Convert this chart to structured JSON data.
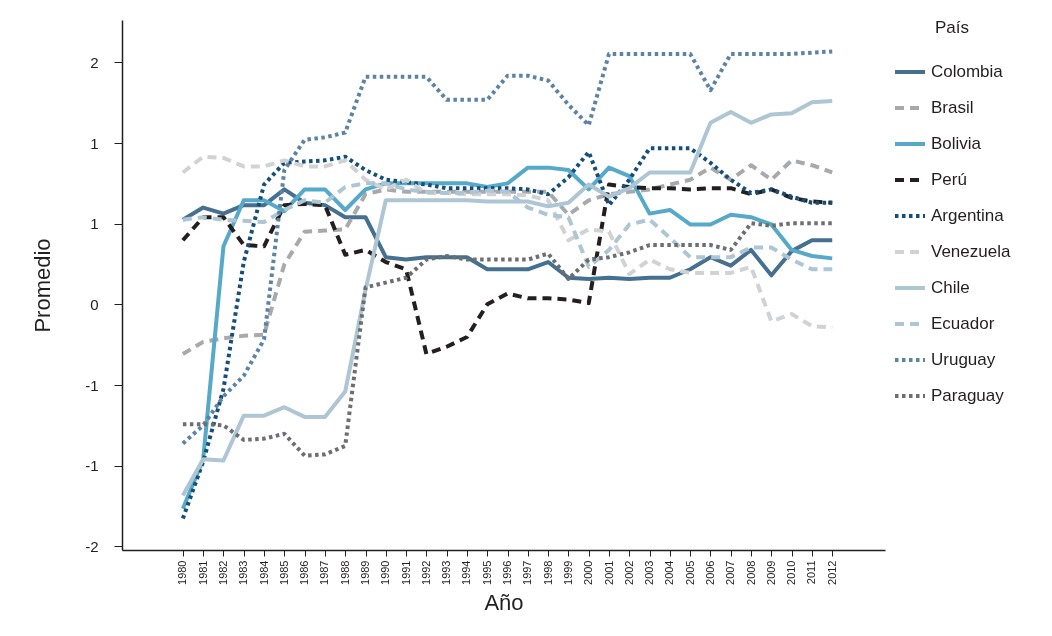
{
  "chart_data": {
    "type": "line",
    "xlabel": "Año",
    "ylabel": "Promedio",
    "legend_title": "País",
    "legend": "right",
    "grid": false,
    "x": [
      1980,
      1981,
      1982,
      1983,
      1984,
      1985,
      1986,
      1987,
      1988,
      1989,
      1990,
      1991,
      1992,
      1993,
      1994,
      1995,
      1996,
      1997,
      1998,
      1999,
      2000,
      2001,
      2002,
      2003,
      2004,
      2005,
      2006,
      2007,
      2008,
      2009,
      2010,
      2011,
      2012
    ],
    "xlim": [
      1977,
      2014.6
    ],
    "xticks": [
      1980,
      1981,
      1982,
      1983,
      1984,
      1985,
      1986,
      1987,
      1988,
      1989,
      1990,
      1991,
      1992,
      1993,
      1994,
      1995,
      1996,
      1997,
      1998,
      1999,
      2000,
      2001,
      2002,
      2003,
      2004,
      2005,
      2006,
      2007,
      2008,
      2009,
      2010,
      2011,
      2012
    ],
    "ylim": [
      -2.03,
      2.35
    ],
    "yticks": [
      {
        "value": -2,
        "label": "-2"
      },
      {
        "value": -1.333,
        "label": "-1"
      },
      {
        "value": -0.667,
        "label": "-1"
      },
      {
        "value": 0,
        "label": "0"
      },
      {
        "value": 0.667,
        "label": "1"
      },
      {
        "value": 1.333,
        "label": "1"
      },
      {
        "value": 2,
        "label": "2"
      }
    ],
    "series": [
      {
        "name": "Colombia",
        "color": "#46708f",
        "line_style": "solid",
        "values": [
          0.7,
          0.8,
          0.75,
          0.82,
          0.82,
          0.95,
          0.84,
          0.82,
          0.72,
          0.72,
          0.39,
          0.37,
          0.39,
          0.39,
          0.39,
          0.29,
          0.29,
          0.29,
          0.35,
          0.22,
          0.21,
          0.22,
          0.21,
          0.22,
          0.22,
          0.29,
          0.39,
          0.32,
          0.45,
          0.24,
          0.44,
          0.53,
          0.53
        ]
      },
      {
        "name": "Brasil",
        "color": "#a7a9ac",
        "line_style": "dashed",
        "values": [
          -0.41,
          -0.31,
          -0.28,
          -0.26,
          -0.25,
          0.33,
          0.6,
          0.61,
          0.62,
          0.91,
          0.95,
          0.93,
          0.93,
          0.93,
          0.93,
          0.93,
          0.93,
          0.93,
          0.93,
          0.74,
          0.86,
          0.91,
          0.93,
          0.95,
          0.99,
          1.03,
          1.13,
          1.03,
          1.15,
          1.03,
          1.19,
          1.15,
          1.09
        ]
      },
      {
        "name": "Bolivia",
        "color": "#57a9c9",
        "line_style": "solid",
        "values": [
          -1.69,
          -1.28,
          0.48,
          0.86,
          0.86,
          0.77,
          0.95,
          0.95,
          0.78,
          0.95,
          1.0,
          1.0,
          1.0,
          1.0,
          1.0,
          0.97,
          1.0,
          1.13,
          1.13,
          1.11,
          0.95,
          1.13,
          1.06,
          0.75,
          0.78,
          0.66,
          0.66,
          0.74,
          0.72,
          0.66,
          0.45,
          0.4,
          0.38
        ]
      },
      {
        "name": "Perú",
        "color": "#231f20",
        "line_style": "dashed",
        "values": [
          0.53,
          0.72,
          0.72,
          0.49,
          0.48,
          0.82,
          0.83,
          0.82,
          0.41,
          0.45,
          0.35,
          0.29,
          -0.41,
          -0.35,
          -0.27,
          0.0,
          0.09,
          0.05,
          0.05,
          0.04,
          0.01,
          0.99,
          0.97,
          0.96,
          0.96,
          0.95,
          0.96,
          0.96,
          0.91,
          0.95,
          0.88,
          0.85,
          0.84
        ]
      },
      {
        "name": "Argentina",
        "color": "#154e77",
        "line_style": "dotted",
        "values": [
          -1.77,
          -1.3,
          -0.7,
          0.35,
          0.99,
          1.17,
          1.18,
          1.19,
          1.22,
          1.11,
          1.03,
          1.01,
          0.99,
          0.96,
          0.96,
          0.96,
          0.96,
          0.95,
          0.91,
          1.05,
          1.26,
          0.82,
          1.03,
          1.29,
          1.29,
          1.29,
          1.17,
          1.03,
          0.92,
          0.95,
          0.89,
          0.84,
          0.84
        ]
      },
      {
        "name": "Venezuela",
        "color": "#d1d2d4",
        "line_style": "dashed",
        "values": [
          1.09,
          1.22,
          1.21,
          1.14,
          1.14,
          1.19,
          1.14,
          1.14,
          1.19,
          1.03,
          0.95,
          1.03,
          0.92,
          0.92,
          0.91,
          0.91,
          0.91,
          0.9,
          0.86,
          0.53,
          0.62,
          0.6,
          0.25,
          0.37,
          0.29,
          0.26,
          0.26,
          0.26,
          0.31,
          -0.14,
          -0.08,
          -0.18,
          -0.19
        ]
      },
      {
        "name": "Chile",
        "color": "#aec5d3",
        "line_style": "solid",
        "values": [
          -1.58,
          -1.28,
          -1.29,
          -0.92,
          -0.92,
          -0.85,
          -0.93,
          -0.93,
          -0.72,
          0.12,
          0.86,
          0.86,
          0.86,
          0.86,
          0.86,
          0.85,
          0.85,
          0.85,
          0.81,
          0.84,
          0.99,
          0.89,
          0.96,
          1.09,
          1.09,
          1.09,
          1.5,
          1.59,
          1.5,
          1.57,
          1.58,
          1.67,
          1.68
        ]
      },
      {
        "name": "Ecuador",
        "color": "#aec5d3",
        "line_style": "dashed",
        "values": [
          0.7,
          0.72,
          0.7,
          0.69,
          0.68,
          0.78,
          0.86,
          0.84,
          0.97,
          1.0,
          1.0,
          0.95,
          0.93,
          0.92,
          0.92,
          0.94,
          0.93,
          0.8,
          0.74,
          0.72,
          0.31,
          0.45,
          0.66,
          0.7,
          0.55,
          0.39,
          0.39,
          0.39,
          0.47,
          0.47,
          0.37,
          0.29,
          0.29
        ]
      },
      {
        "name": "Uruguay",
        "color": "#5d83a3",
        "line_style": "dotted",
        "values": [
          -1.15,
          -1.0,
          -0.76,
          -0.59,
          -0.29,
          1.11,
          1.36,
          1.38,
          1.42,
          1.88,
          1.88,
          1.88,
          1.88,
          1.69,
          1.69,
          1.69,
          1.89,
          1.89,
          1.85,
          1.65,
          1.48,
          2.07,
          2.07,
          2.07,
          2.07,
          2.07,
          1.77,
          2.07,
          2.07,
          2.07,
          2.07,
          2.08,
          2.09
        ]
      },
      {
        "name": "Paraguay",
        "color": "#6d6e71",
        "line_style": "dotted",
        "values": [
          -0.99,
          -0.99,
          -1.0,
          -1.12,
          -1.11,
          -1.07,
          -1.25,
          -1.24,
          -1.17,
          0.14,
          0.18,
          0.22,
          0.37,
          0.4,
          0.37,
          0.37,
          0.37,
          0.37,
          0.42,
          0.21,
          0.37,
          0.39,
          0.43,
          0.49,
          0.49,
          0.49,
          0.49,
          0.45,
          0.67,
          0.65,
          0.67,
          0.67,
          0.67
        ]
      }
    ]
  }
}
